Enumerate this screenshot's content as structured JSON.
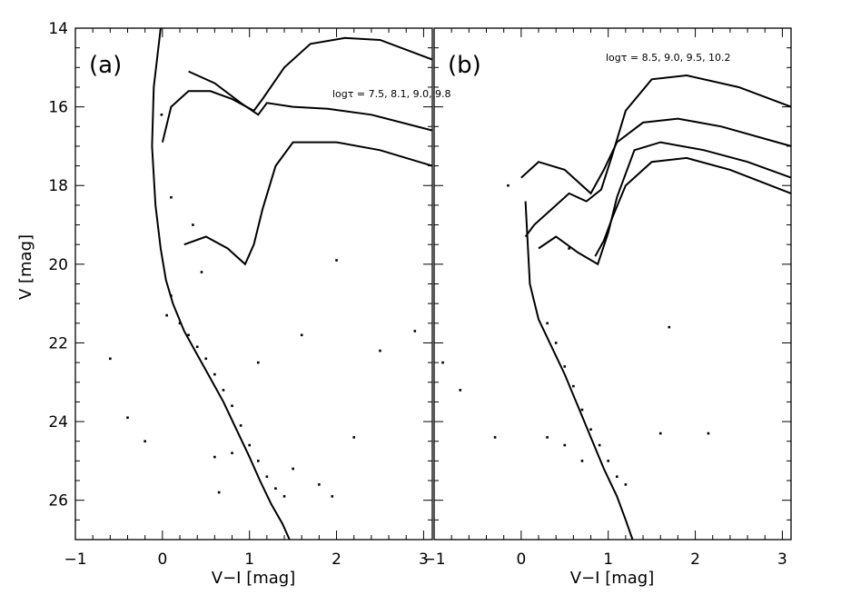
{
  "chart_data": [
    {
      "type": "scatter",
      "panel_label": "(a)",
      "annotation": "logτ = 7.5, 8.1, 9.0, 9.8",
      "xlabel": "V−I [mag]",
      "ylabel": "V [mag]",
      "xlim": [
        -1,
        3.1
      ],
      "ylim": [
        27,
        14
      ],
      "x_ticks": [
        "−1",
        "0",
        "1",
        "2",
        "3"
      ],
      "y_ticks": [
        "14",
        "16",
        "18",
        "20",
        "22",
        "24",
        "26"
      ],
      "isochrones": [
        {
          "logt": 7.5,
          "points": [
            [
              -0.02,
              14
            ],
            [
              -0.1,
              15.5
            ],
            [
              -0.12,
              17
            ],
            [
              -0.08,
              18.5
            ],
            [
              -0.02,
              19.6
            ],
            [
              0.04,
              20.4
            ],
            [
              0.12,
              21.0
            ],
            [
              0.25,
              21.7
            ],
            [
              0.4,
              22.3
            ],
            [
              0.55,
              22.9
            ],
            [
              0.7,
              23.5
            ],
            [
              0.85,
              24.2
            ],
            [
              1.0,
              24.9
            ],
            [
              1.12,
              25.5
            ],
            [
              1.25,
              26.1
            ],
            [
              1.38,
              26.6
            ],
            [
              1.46,
              27
            ]
          ]
        },
        {
          "logt": 8.1,
          "points": [
            [
              0.0,
              16.9
            ],
            [
              0.1,
              16.0
            ],
            [
              0.3,
              15.6
            ],
            [
              0.55,
              15.6
            ],
            [
              0.8,
              15.8
            ],
            [
              1.05,
              16.1
            ],
            [
              1.15,
              15.8
            ],
            [
              1.4,
              15.0
            ],
            [
              1.7,
              14.4
            ],
            [
              2.1,
              14.25
            ],
            [
              2.5,
              14.3
            ],
            [
              3.1,
              14.8
            ]
          ]
        },
        {
          "logt": 9.0,
          "points": [
            [
              0.3,
              15.1
            ],
            [
              0.6,
              15.4
            ],
            [
              0.9,
              15.9
            ],
            [
              1.1,
              16.2
            ],
            [
              1.2,
              15.9
            ],
            [
              1.5,
              16.0
            ],
            [
              1.9,
              16.05
            ],
            [
              2.4,
              16.2
            ],
            [
              3.1,
              16.6
            ]
          ]
        },
        {
          "logt": 9.8,
          "points": [
            [
              0.25,
              19.5
            ],
            [
              0.5,
              19.3
            ],
            [
              0.75,
              19.6
            ],
            [
              0.95,
              20.0
            ],
            [
              1.05,
              19.5
            ],
            [
              1.15,
              18.6
            ],
            [
              1.3,
              17.5
            ],
            [
              1.5,
              16.9
            ],
            [
              2.0,
              16.9
            ],
            [
              2.5,
              17.1
            ],
            [
              3.1,
              17.5
            ]
          ]
        }
      ],
      "points": [
        [
          0.05,
          21.3
        ],
        [
          0.1,
          20.8
        ],
        [
          0.2,
          21.5
        ],
        [
          0.3,
          21.8
        ],
        [
          0.4,
          22.1
        ],
        [
          0.5,
          22.4
        ],
        [
          0.6,
          22.8
        ],
        [
          0.7,
          23.2
        ],
        [
          0.8,
          23.6
        ],
        [
          0.9,
          24.1
        ],
        [
          1.0,
          24.6
        ],
        [
          1.1,
          25.0
        ],
        [
          1.2,
          25.4
        ],
        [
          1.3,
          25.7
        ],
        [
          1.4,
          25.9
        ],
        [
          0.8,
          24.8
        ],
        [
          1.5,
          25.2
        ],
        [
          1.8,
          25.6
        ],
        [
          0.6,
          24.9
        ],
        [
          1.1,
          22.5
        ],
        [
          1.6,
          21.8
        ],
        [
          2.5,
          22.2
        ],
        [
          -0.6,
          22.4
        ],
        [
          -0.4,
          23.9
        ],
        [
          -0.2,
          24.5
        ],
        [
          -0.01,
          16.2
        ],
        [
          0.1,
          18.3
        ],
        [
          0.35,
          19.0
        ],
        [
          0.45,
          20.2
        ],
        [
          2.0,
          19.9
        ],
        [
          2.9,
          21.7
        ],
        [
          2.2,
          24.4
        ],
        [
          0.65,
          25.8
        ],
        [
          1.95,
          25.9
        ]
      ]
    },
    {
      "type": "scatter",
      "panel_label": "(b)",
      "annotation": "logτ = 8.5, 9.0, 9.5, 10.2",
      "xlabel": "V−I [mag]",
      "ylabel": "",
      "xlim": [
        -1,
        3.1
      ],
      "ylim": [
        27,
        14
      ],
      "x_ticks": [
        "−1",
        "0",
        "1",
        "2",
        "3"
      ],
      "y_ticks": [],
      "isochrones": [
        {
          "logt": 8.5,
          "points": [
            [
              0.05,
              19.3
            ],
            [
              0.15,
              19.0
            ],
            [
              0.35,
              18.6
            ],
            [
              0.55,
              18.2
            ],
            [
              0.75,
              18.4
            ],
            [
              0.92,
              18.1
            ],
            [
              1.05,
              17.2
            ],
            [
              1.2,
              16.1
            ],
            [
              1.5,
              15.3
            ],
            [
              1.9,
              15.2
            ],
            [
              2.5,
              15.5
            ],
            [
              3.1,
              16.0
            ]
          ]
        },
        {
          "logt": 9.0,
          "points": [
            [
              0.0,
              17.8
            ],
            [
              0.2,
              17.4
            ],
            [
              0.5,
              17.6
            ],
            [
              0.8,
              18.2
            ],
            [
              0.95,
              17.6
            ],
            [
              1.1,
              16.9
            ],
            [
              1.4,
              16.4
            ],
            [
              1.8,
              16.3
            ],
            [
              2.3,
              16.5
            ],
            [
              3.1,
              17.0
            ]
          ]
        },
        {
          "logt": 9.5,
          "points": [
            [
              0.2,
              19.6
            ],
            [
              0.4,
              19.3
            ],
            [
              0.65,
              19.7
            ],
            [
              0.88,
              20.0
            ],
            [
              1.0,
              19.2
            ],
            [
              1.1,
              18.3
            ],
            [
              1.3,
              17.1
            ],
            [
              1.6,
              16.9
            ],
            [
              2.1,
              17.1
            ],
            [
              2.6,
              17.4
            ],
            [
              3.1,
              17.8
            ]
          ]
        },
        {
          "logt": 10.2,
          "points": [
            [
              0.85,
              19.8
            ],
            [
              0.95,
              19.4
            ],
            [
              1.05,
              18.8
            ],
            [
              1.2,
              18.0
            ],
            [
              1.5,
              17.4
            ],
            [
              1.9,
              17.3
            ],
            [
              2.4,
              17.6
            ],
            [
              3.1,
              18.2
            ]
          ]
        },
        {
          "logt": 0,
          "points": [
            [
              0.05,
              18.4
            ],
            [
              0.1,
              20.5
            ],
            [
              0.2,
              21.4
            ],
            [
              0.35,
              22.1
            ],
            [
              0.5,
              22.8
            ],
            [
              0.65,
              23.6
            ],
            [
              0.8,
              24.4
            ],
            [
              0.95,
              25.2
            ],
            [
              1.1,
              25.9
            ],
            [
              1.2,
              26.5
            ],
            [
              1.28,
              27
            ]
          ]
        }
      ],
      "points": [
        [
          0.3,
          21.5
        ],
        [
          0.4,
          22.0
        ],
        [
          0.5,
          22.6
        ],
        [
          0.6,
          23.1
        ],
        [
          0.7,
          23.7
        ],
        [
          0.8,
          24.2
        ],
        [
          0.9,
          24.6
        ],
        [
          1.0,
          25.0
        ],
        [
          1.1,
          25.4
        ],
        [
          1.2,
          25.6
        ],
        [
          0.5,
          24.6
        ],
        [
          0.7,
          25.0
        ],
        [
          0.3,
          24.4
        ],
        [
          -0.3,
          24.4
        ],
        [
          -0.7,
          23.2
        ],
        [
          -0.9,
          22.5
        ],
        [
          -0.15,
          18.0
        ],
        [
          0.55,
          19.6
        ],
        [
          1.6,
          24.3
        ],
        [
          2.15,
          24.3
        ],
        [
          1.7,
          21.6
        ]
      ]
    }
  ]
}
